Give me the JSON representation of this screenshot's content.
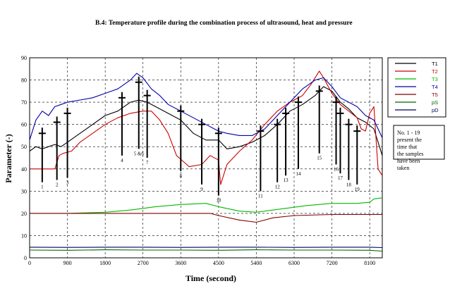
{
  "chart_data": {
    "type": "line",
    "title": "B.4: Temperature profile during the combination process of ultrasound, heat and pressure",
    "xlabel": "Time (second)",
    "ylabel": "Parameter (-)",
    "xlim": [
      0,
      8400
    ],
    "ylim": [
      0,
      90
    ],
    "xticks": [
      "0",
      "900",
      "1800",
      "2700",
      "3600",
      "4500",
      "5400",
      "6300",
      "7200",
      "8100"
    ],
    "xtick_values": [
      0,
      900,
      1800,
      2700,
      3600,
      4500,
      5400,
      6300,
      7200,
      8100
    ],
    "yticks": [
      "0",
      "10",
      "20",
      "30",
      "40",
      "50",
      "60",
      "70",
      "80",
      "90"
    ],
    "ytick_values": [
      0,
      10,
      20,
      30,
      40,
      50,
      60,
      70,
      80,
      90
    ],
    "grid": true,
    "legend_position": "right",
    "series": [
      {
        "name": "T1",
        "color": "#000000",
        "x": [
          0,
          150,
          300,
          450,
          600,
          750,
          900,
          1200,
          1500,
          1800,
          2100,
          2400,
          2600,
          2800,
          3000,
          3300,
          3600,
          3900,
          4200,
          4500,
          4700,
          5000,
          5300,
          5600,
          5900,
          6200,
          6500,
          6800,
          7000,
          7200,
          7400,
          7600,
          7800,
          8000,
          8200,
          8400
        ],
        "y": [
          48,
          50,
          49,
          50,
          51,
          50,
          52,
          56,
          60,
          64,
          66,
          70,
          71,
          70,
          68,
          65,
          62,
          56,
          53,
          53,
          49,
          50,
          52,
          55,
          60,
          66,
          69,
          73,
          77,
          75,
          70,
          67,
          63,
          61,
          58,
          46
        ]
      },
      {
        "name": "T2",
        "color": "#cc0000",
        "x": [
          0,
          200,
          400,
          600,
          700,
          800,
          1000,
          1200,
          1500,
          1800,
          2100,
          2400,
          2700,
          2900,
          3100,
          3300,
          3500,
          3800,
          4100,
          4300,
          4500,
          4550,
          4700,
          5000,
          5300,
          5600,
          5900,
          6200,
          6500,
          6700,
          6900,
          7000,
          7200,
          7400,
          7600,
          7800,
          7900,
          8000,
          8100,
          8200,
          8300,
          8400
        ],
        "y": [
          40,
          40,
          40,
          40,
          46,
          47,
          48,
          52,
          56,
          60,
          63,
          65,
          66,
          66,
          62,
          56,
          46,
          41,
          42,
          46,
          44,
          33,
          42,
          48,
          53,
          60,
          66,
          70,
          73,
          78,
          84,
          81,
          74,
          69,
          66,
          63,
          58,
          57,
          65,
          68,
          40,
          37
        ]
      },
      {
        "name": "T3",
        "color": "#00bb00",
        "x": [
          0,
          900,
          1800,
          2400,
          3000,
          3600,
          4200,
          4500,
          5000,
          5400,
          6000,
          6600,
          7200,
          7800,
          8100,
          8200,
          8400
        ],
        "y": [
          20,
          20,
          20.5,
          21.5,
          23,
          24,
          24.5,
          23,
          21,
          20.5,
          22,
          23.5,
          24.5,
          24.5,
          25,
          26.5,
          27
        ]
      },
      {
        "name": "T4",
        "color": "#0000aa",
        "x": [
          0,
          150,
          300,
          450,
          600,
          750,
          900,
          1200,
          1500,
          1800,
          2100,
          2400,
          2550,
          2700,
          2900,
          3100,
          3300,
          3600,
          3900,
          4200,
          4400,
          4500,
          4700,
          5000,
          5300,
          5600,
          5900,
          6200,
          6500,
          6800,
          7000,
          7200,
          7400,
          7600,
          7800,
          8000,
          8200,
          8400
        ],
        "y": [
          53,
          62,
          66,
          64,
          68,
          69,
          70,
          71,
          72,
          74,
          76,
          80,
          83,
          81,
          76,
          73,
          69,
          66,
          63,
          60,
          58,
          57,
          56,
          55,
          55,
          58,
          64,
          70,
          76,
          80,
          81,
          77,
          72,
          70,
          68,
          64,
          62,
          54
        ]
      },
      {
        "name": "T5",
        "color": "#800000",
        "x": [
          0,
          900,
          1800,
          2700,
          3600,
          4300,
          4500,
          5000,
          5400,
          5800,
          6300,
          7200,
          8100,
          8400
        ],
        "y": [
          20,
          20,
          20,
          20,
          20,
          20,
          19,
          17,
          16,
          18,
          19,
          19.5,
          19.5,
          19.5
        ]
      },
      {
        "name": "pS",
        "color": "#006600",
        "x": [
          0,
          900,
          1800,
          2700,
          3600,
          4500,
          5400,
          6300,
          7200,
          8100,
          8400
        ],
        "y": [
          3.5,
          3.4,
          3.6,
          3.5,
          3.5,
          3.4,
          3.6,
          3.5,
          3.5,
          3.4,
          3.0
        ]
      },
      {
        "name": "pD",
        "color": "#000066",
        "x": [
          0,
          900,
          1800,
          2700,
          3600,
          4500,
          5400,
          6300,
          7200,
          8100,
          8400
        ],
        "y": [
          4.8,
          4.7,
          4.8,
          4.8,
          4.7,
          4.8,
          4.8,
          4.7,
          4.8,
          4.8,
          4.6
        ]
      }
    ],
    "sample_markers": [
      {
        "label": "1",
        "x": 300,
        "y_top": 56,
        "y_bottom": 34
      },
      {
        "label": "2",
        "x": 650,
        "y_top": 61,
        "y_bottom": 35
      },
      {
        "label": "3",
        "x": 900,
        "y_top": 65,
        "y_bottom": 36
      },
      {
        "label": "4",
        "x": 2200,
        "y_top": 72,
        "y_bottom": 46
      },
      {
        "label": "5 &6",
        "x": 2600,
        "y_top": 79,
        "y_bottom": 49
      },
      {
        "label": "7",
        "x": 2800,
        "y_top": 73,
        "y_bottom": 45
      },
      {
        "label": "8",
        "x": 3600,
        "y_top": 66,
        "y_bottom": 39
      },
      {
        "label": "9",
        "x": 4100,
        "y_top": 60,
        "y_bottom": 33
      },
      {
        "label": "10",
        "x": 4500,
        "y_top": 56,
        "y_bottom": 28
      },
      {
        "label": "11",
        "x": 5500,
        "y_top": 57,
        "y_bottom": 30
      },
      {
        "label": "12",
        "x": 5900,
        "y_top": 60,
        "y_bottom": 34
      },
      {
        "label": "13",
        "x": 6100,
        "y_top": 65,
        "y_bottom": 37
      },
      {
        "label": "14",
        "x": 6400,
        "y_top": 70,
        "y_bottom": 40
      },
      {
        "label": "15",
        "x": 6900,
        "y_top": 75,
        "y_bottom": 47
      },
      {
        "label": "16",
        "x": 7300,
        "y_top": 70,
        "y_bottom": 42
      },
      {
        "label": "17",
        "x": 7400,
        "y_top": 65,
        "y_bottom": 38
      },
      {
        "label": "18",
        "x": 7600,
        "y_top": 60,
        "y_bottom": 35
      },
      {
        "label": "19",
        "x": 7800,
        "y_top": 57,
        "y_bottom": 33
      }
    ],
    "annotation": "No. 1 - 19 present the time that the samples have been taken"
  }
}
